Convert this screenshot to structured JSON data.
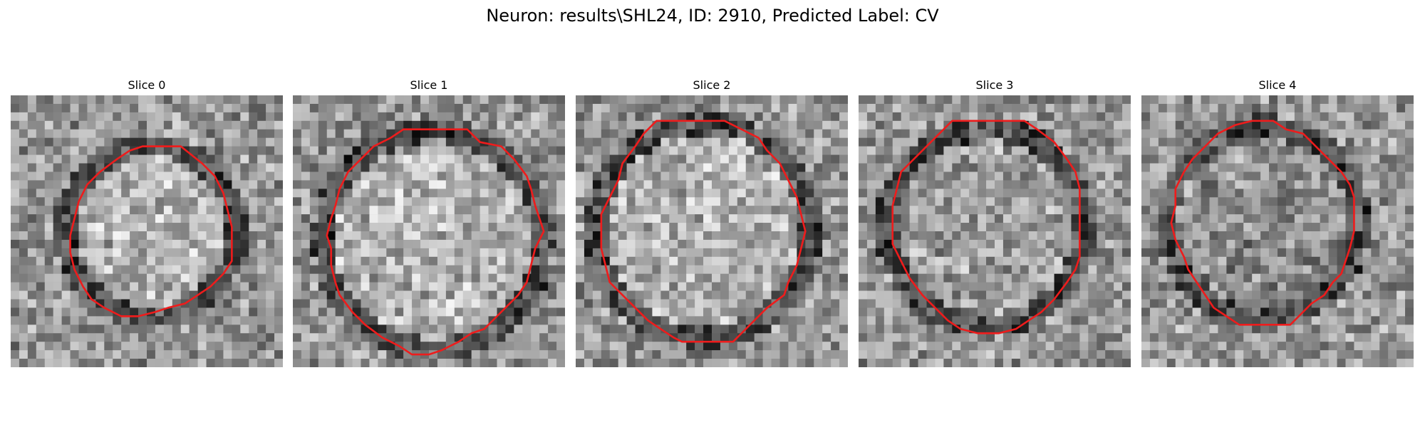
{
  "figure": {
    "title": "Neuron: results\\SHL24, ID: 2910, Predicted Label: CV"
  },
  "panels": [
    {
      "title": "Slice 0",
      "image": "grayscale-em-patch",
      "overlay_color": "#ee1c1c",
      "interior_tone": "light",
      "membrane_tone": "dark"
    },
    {
      "title": "Slice 1",
      "image": "grayscale-em-patch",
      "overlay_color": "#ee1c1c",
      "interior_tone": "light",
      "membrane_tone": "dark"
    },
    {
      "title": "Slice 2",
      "image": "grayscale-em-patch",
      "overlay_color": "#ee1c1c",
      "interior_tone": "light",
      "membrane_tone": "dark"
    },
    {
      "title": "Slice 3",
      "image": "grayscale-em-patch",
      "overlay_color": "#ee1c1c",
      "interior_tone": "medium",
      "membrane_tone": "dark"
    },
    {
      "title": "Slice 4",
      "image": "grayscale-em-patch",
      "overlay_color": "#ee1c1c",
      "interior_tone": "medium-dark",
      "membrane_tone": "dark"
    }
  ]
}
